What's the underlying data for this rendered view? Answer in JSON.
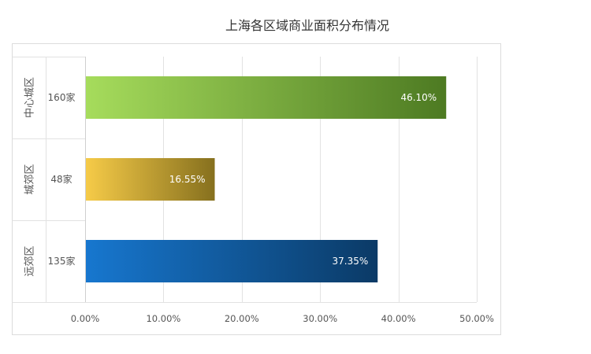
{
  "chart_data": {
    "type": "bar",
    "orientation": "horizontal",
    "title": "上海各区域商业面积分布情况",
    "categories": [
      {
        "region": "中心城区",
        "count_label": "160家"
      },
      {
        "region": "城郊区",
        "count_label": "48家"
      },
      {
        "region": "远郊区",
        "count_label": "135家"
      }
    ],
    "values": [
      46.1,
      16.55,
      37.35
    ],
    "value_labels": [
      "46.10%",
      "16.55%",
      "37.35%"
    ],
    "xlim": [
      0,
      50
    ],
    "x_ticks": [
      0,
      10,
      20,
      30,
      40,
      50
    ],
    "x_tick_labels": [
      "0.00%",
      "10.00%",
      "20.00%",
      "30.00%",
      "40.00%",
      "50.00%"
    ],
    "grid": true,
    "legend": "none",
    "bar_colors": [
      {
        "from": "#a6dc5c",
        "to": "#4d7a22"
      },
      {
        "from": "#f6cb48",
        "to": "#86701e"
      },
      {
        "from": "#1777cf",
        "to": "#0b3a66"
      }
    ]
  }
}
